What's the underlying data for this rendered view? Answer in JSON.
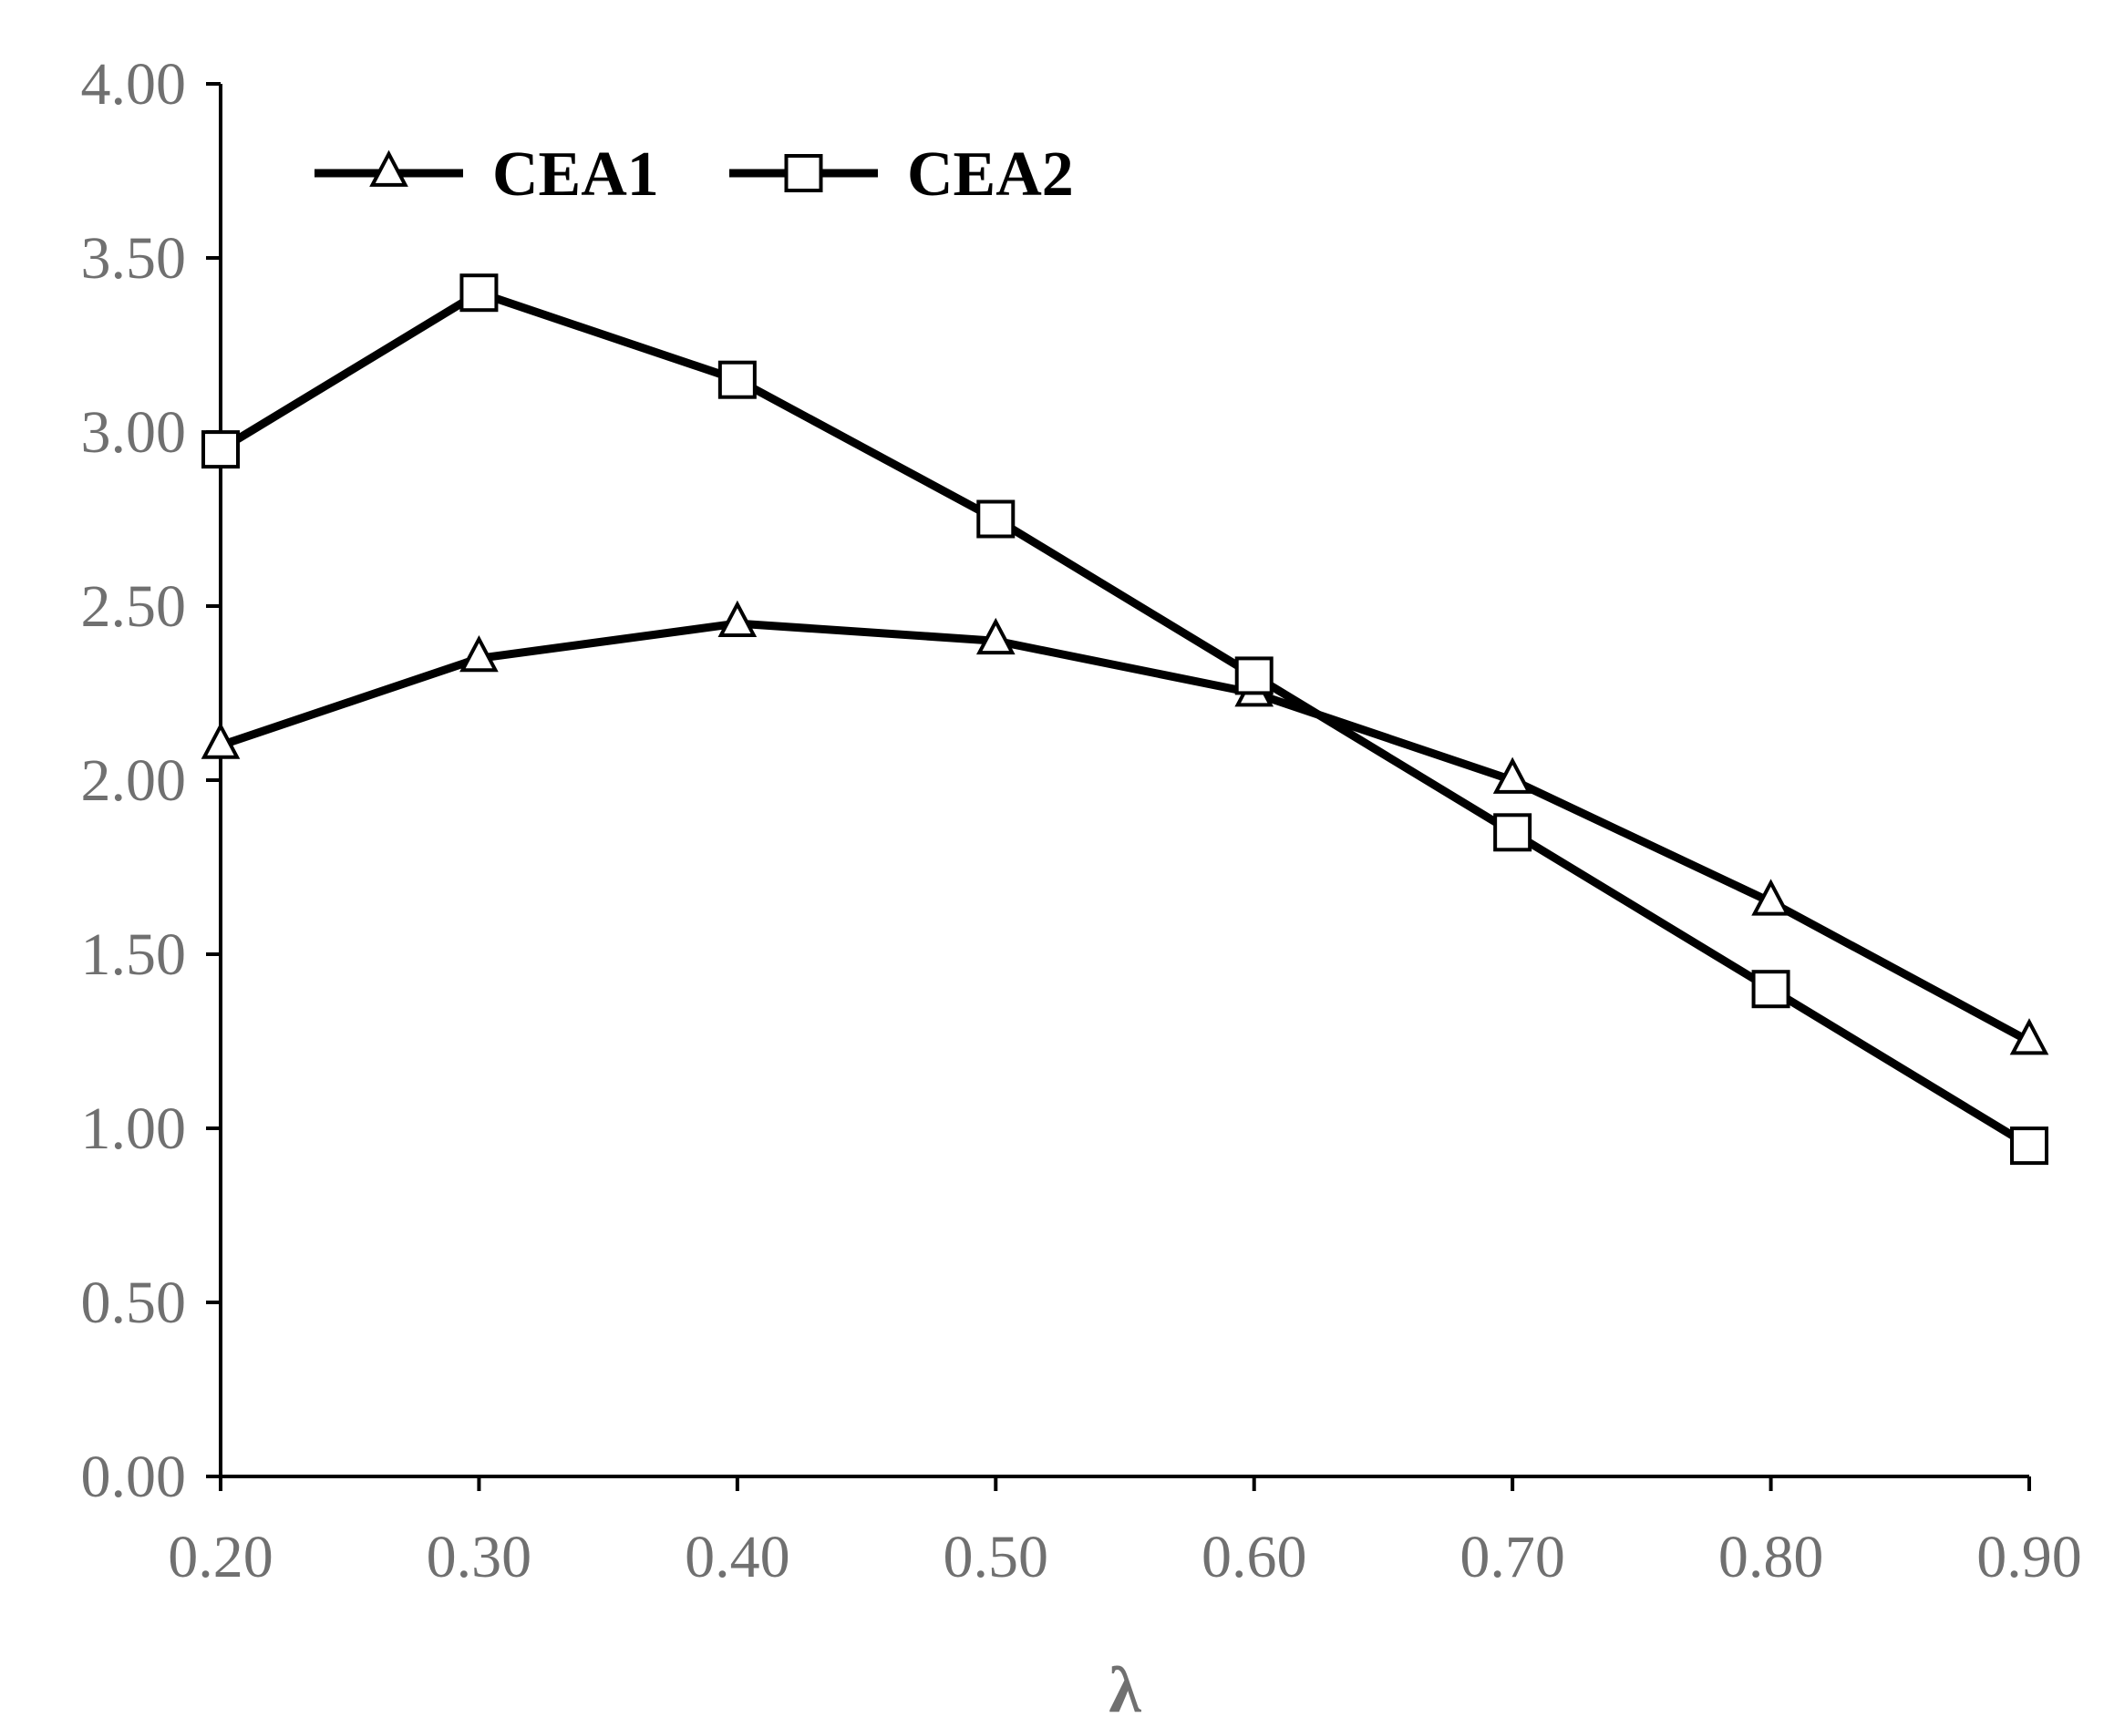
{
  "chart_data": {
    "type": "line",
    "title": "",
    "xlabel": "λ",
    "ylabel": "",
    "x": [
      0.2,
      0.3,
      0.4,
      0.5,
      0.6,
      0.7,
      0.8,
      0.9
    ],
    "xlim": [
      0.2,
      0.9
    ],
    "ylim": [
      0,
      4
    ],
    "x_tick_labels": [
      "0.20",
      "0.30",
      "0.40",
      "0.50",
      "0.60",
      "0.70",
      "0.80",
      "0.90"
    ],
    "y_tick_labels": [
      "0.00",
      "0.50",
      "1.00",
      "1.50",
      "2.00",
      "2.50",
      "3.00",
      "3.50",
      "4.00"
    ],
    "grid": false,
    "legend_position": "top-left",
    "series": [
      {
        "name": "CEA1",
        "marker": "triangle",
        "color": "#000000",
        "values": [
          2.1,
          2.35,
          2.45,
          2.4,
          2.25,
          2.0,
          1.65,
          1.25
        ]
      },
      {
        "name": "CEA2",
        "marker": "square",
        "color": "#000000",
        "values": [
          2.95,
          3.4,
          3.15,
          2.75,
          2.3,
          1.85,
          1.4,
          0.95
        ]
      }
    ]
  }
}
